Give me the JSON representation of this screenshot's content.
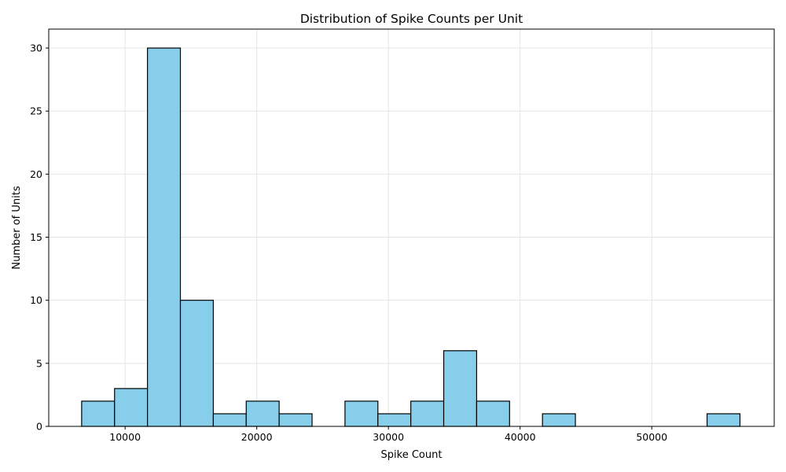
{
  "chart_data": {
    "type": "bar",
    "title": "Distribution of Spike Counts per Unit",
    "xlabel": "Spike Count",
    "ylabel": "Number of Units",
    "xlim": [
      4200,
      59300
    ],
    "ylim": [
      0,
      31.5
    ],
    "x_ticks": [
      10000,
      20000,
      30000,
      40000,
      50000
    ],
    "y_ticks": [
      0,
      5,
      10,
      15,
      20,
      25,
      30
    ],
    "grid": true,
    "colors": {
      "bar_fill": "#87ceeb",
      "bar_edge": "#000000",
      "grid": "#e5e5e5"
    },
    "bins": [
      {
        "x0": 6700,
        "x1": 9200,
        "count": 2
      },
      {
        "x0": 9200,
        "x1": 11700,
        "count": 3
      },
      {
        "x0": 11700,
        "x1": 14200,
        "count": 30
      },
      {
        "x0": 14200,
        "x1": 16700,
        "count": 10
      },
      {
        "x0": 16700,
        "x1": 19200,
        "count": 1
      },
      {
        "x0": 19200,
        "x1": 21700,
        "count": 2
      },
      {
        "x0": 21700,
        "x1": 24200,
        "count": 1
      },
      {
        "x0": 24200,
        "x1": 26700,
        "count": 0
      },
      {
        "x0": 26700,
        "x1": 29200,
        "count": 2
      },
      {
        "x0": 29200,
        "x1": 31700,
        "count": 1
      },
      {
        "x0": 31700,
        "x1": 34200,
        "count": 2
      },
      {
        "x0": 34200,
        "x1": 36700,
        "count": 6
      },
      {
        "x0": 36700,
        "x1": 39200,
        "count": 2
      },
      {
        "x0": 39200,
        "x1": 41700,
        "count": 0
      },
      {
        "x0": 41700,
        "x1": 44200,
        "count": 1
      },
      {
        "x0": 44200,
        "x1": 46700,
        "count": 0
      },
      {
        "x0": 46700,
        "x1": 49200,
        "count": 0
      },
      {
        "x0": 49200,
        "x1": 51700,
        "count": 0
      },
      {
        "x0": 51700,
        "x1": 54200,
        "count": 0
      },
      {
        "x0": 54200,
        "x1": 56700,
        "count": 1
      }
    ]
  }
}
